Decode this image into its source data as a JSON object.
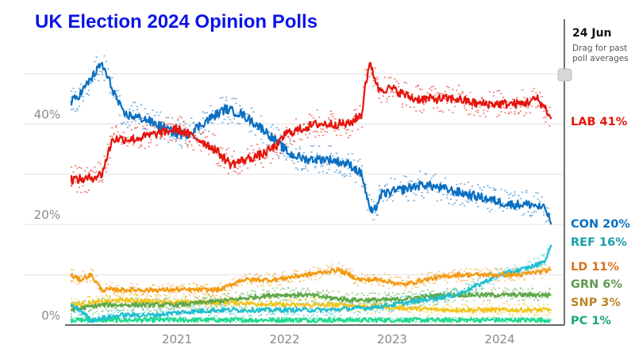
{
  "chart_data": {
    "type": "line",
    "title": "UK Election 2024 Opinion Polls",
    "xlabel": "",
    "ylabel": "",
    "ylim": [
      0,
      50
    ],
    "xlim": [
      2020.0,
      2024.48
    ],
    "y_ticks": [
      {
        "value": 0,
        "label": "0%"
      },
      {
        "value": 20,
        "label": "20%"
      },
      {
        "value": 40,
        "label": "40%"
      }
    ],
    "gridlines": [
      0,
      10,
      20,
      30,
      40,
      50
    ],
    "x_ticks": [
      {
        "value": 2021,
        "label": "2021"
      },
      {
        "value": 2022,
        "label": "2022"
      },
      {
        "value": 2023,
        "label": "2023"
      },
      {
        "value": 2024,
        "label": "2024"
      }
    ],
    "grid": true,
    "cursor": {
      "date": "24 Jun",
      "hint_line1": "Drag for past",
      "hint_line2": "poll averages"
    },
    "series": [
      {
        "name": "LAB",
        "final": 41,
        "label": "LAB 41%",
        "color": "#e4150d",
        "x": [
          2020.0,
          2020.15,
          2020.3,
          2020.4,
          2020.6,
          2020.8,
          2021.0,
          2021.2,
          2021.35,
          2021.5,
          2021.65,
          2021.8,
          2021.95,
          2022.0,
          2022.15,
          2022.3,
          2022.45,
          2022.6,
          2022.72,
          2022.75,
          2022.8,
          2022.87,
          2023.0,
          2023.2,
          2023.4,
          2023.6,
          2023.8,
          2024.0,
          2024.2,
          2024.35,
          2024.43,
          2024.48
        ],
        "values": [
          29,
          29,
          30,
          37,
          37,
          38,
          39,
          37,
          35,
          32,
          33,
          34,
          36,
          38,
          39,
          40,
          40,
          40,
          42,
          48,
          52,
          47,
          47,
          45,
          45,
          45,
          44,
          44,
          44,
          45,
          43,
          41
        ]
      },
      {
        "name": "CON",
        "final": 20,
        "label": "CON 20%",
        "color": "#0a6fc2",
        "x": [
          2020.0,
          2020.1,
          2020.2,
          2020.3,
          2020.4,
          2020.5,
          2020.7,
          2020.9,
          2021.0,
          2021.1,
          2021.3,
          2021.45,
          2021.6,
          2021.8,
          2021.95,
          2022.05,
          2022.2,
          2022.4,
          2022.6,
          2022.72,
          2022.78,
          2022.82,
          2022.9,
          2023.1,
          2023.3,
          2023.5,
          2023.7,
          2023.9,
          2024.1,
          2024.3,
          2024.43,
          2024.48
        ],
        "values": [
          44,
          46,
          49,
          52,
          47,
          42,
          41,
          39,
          38,
          38,
          41,
          43,
          42,
          39,
          36,
          34,
          33,
          33,
          32,
          30,
          24,
          22,
          26,
          27,
          28,
          27,
          26,
          25,
          24,
          24,
          23,
          20
        ]
      },
      {
        "name": "REF",
        "final": 16,
        "label": "REF 16%",
        "color": "#1fbfd0",
        "x": [
          2020.0,
          2020.1,
          2020.2,
          2020.5,
          2020.8,
          2021.0,
          2021.4,
          2021.7,
          2022.0,
          2022.4,
          2022.8,
          2023.0,
          2023.3,
          2023.6,
          2023.8,
          2024.0,
          2024.2,
          2024.35,
          2024.43,
          2024.48
        ],
        "values": [
          4,
          3,
          1,
          2,
          2,
          2.5,
          3,
          3,
          3,
          3,
          3.5,
          4,
          5,
          6,
          8,
          10,
          11,
          12,
          13,
          16
        ]
      },
      {
        "name": "LD",
        "final": 11,
        "label": "LD 11%",
        "color": "#f39a12",
        "x": [
          2020.0,
          2020.1,
          2020.2,
          2020.3,
          2020.6,
          2021.0,
          2021.4,
          2021.6,
          2021.9,
          2022.2,
          2022.5,
          2022.7,
          2022.9,
          2023.1,
          2023.3,
          2023.6,
          2023.9,
          2024.2,
          2024.48
        ],
        "values": [
          10,
          9,
          10,
          7,
          7,
          7,
          7,
          9,
          9,
          10,
          11,
          9,
          9,
          8,
          9,
          10,
          10,
          10,
          11
        ]
      },
      {
        "name": "GRN",
        "final": 6,
        "label": "GRN 6%",
        "color": "#5ea84a",
        "x": [
          2020.0,
          2020.3,
          2020.6,
          2021.0,
          2021.5,
          2021.9,
          2022.2,
          2022.6,
          2023.0,
          2023.5,
          2024.0,
          2024.48
        ],
        "values": [
          3,
          4,
          4,
          4,
          5,
          6,
          6,
          5,
          5,
          6,
          6,
          6
        ]
      },
      {
        "name": "SNP",
        "final": 3,
        "label": "SNP 3%",
        "color": "#f2c41c",
        "x": [
          2020.0,
          2020.5,
          2021.0,
          2021.5,
          2022.0,
          2022.5,
          2023.0,
          2023.5,
          2024.0,
          2024.48
        ],
        "values": [
          4,
          5,
          4.5,
          4.5,
          4,
          4,
          3.5,
          3,
          3,
          3
        ]
      },
      {
        "name": "PC",
        "final": 1,
        "label": "PC 1%",
        "color": "#1ed98e",
        "x": [
          2020.0,
          2020.5,
          2021.0,
          2021.5,
          2022.0,
          2022.5,
          2023.0,
          2023.5,
          2024.0,
          2024.48
        ],
        "values": [
          1,
          1,
          1,
          1,
          1,
          1,
          1,
          1,
          1,
          1
        ]
      }
    ],
    "label_colors": {
      "LAB": "#e4150d",
      "CON": "#0a6fc2",
      "REF": "#1a9fa8",
      "LD": "#d9731a",
      "GRN": "#5f9a50",
      "SNP": "#b8862a",
      "PC": "#1aa57a"
    }
  }
}
